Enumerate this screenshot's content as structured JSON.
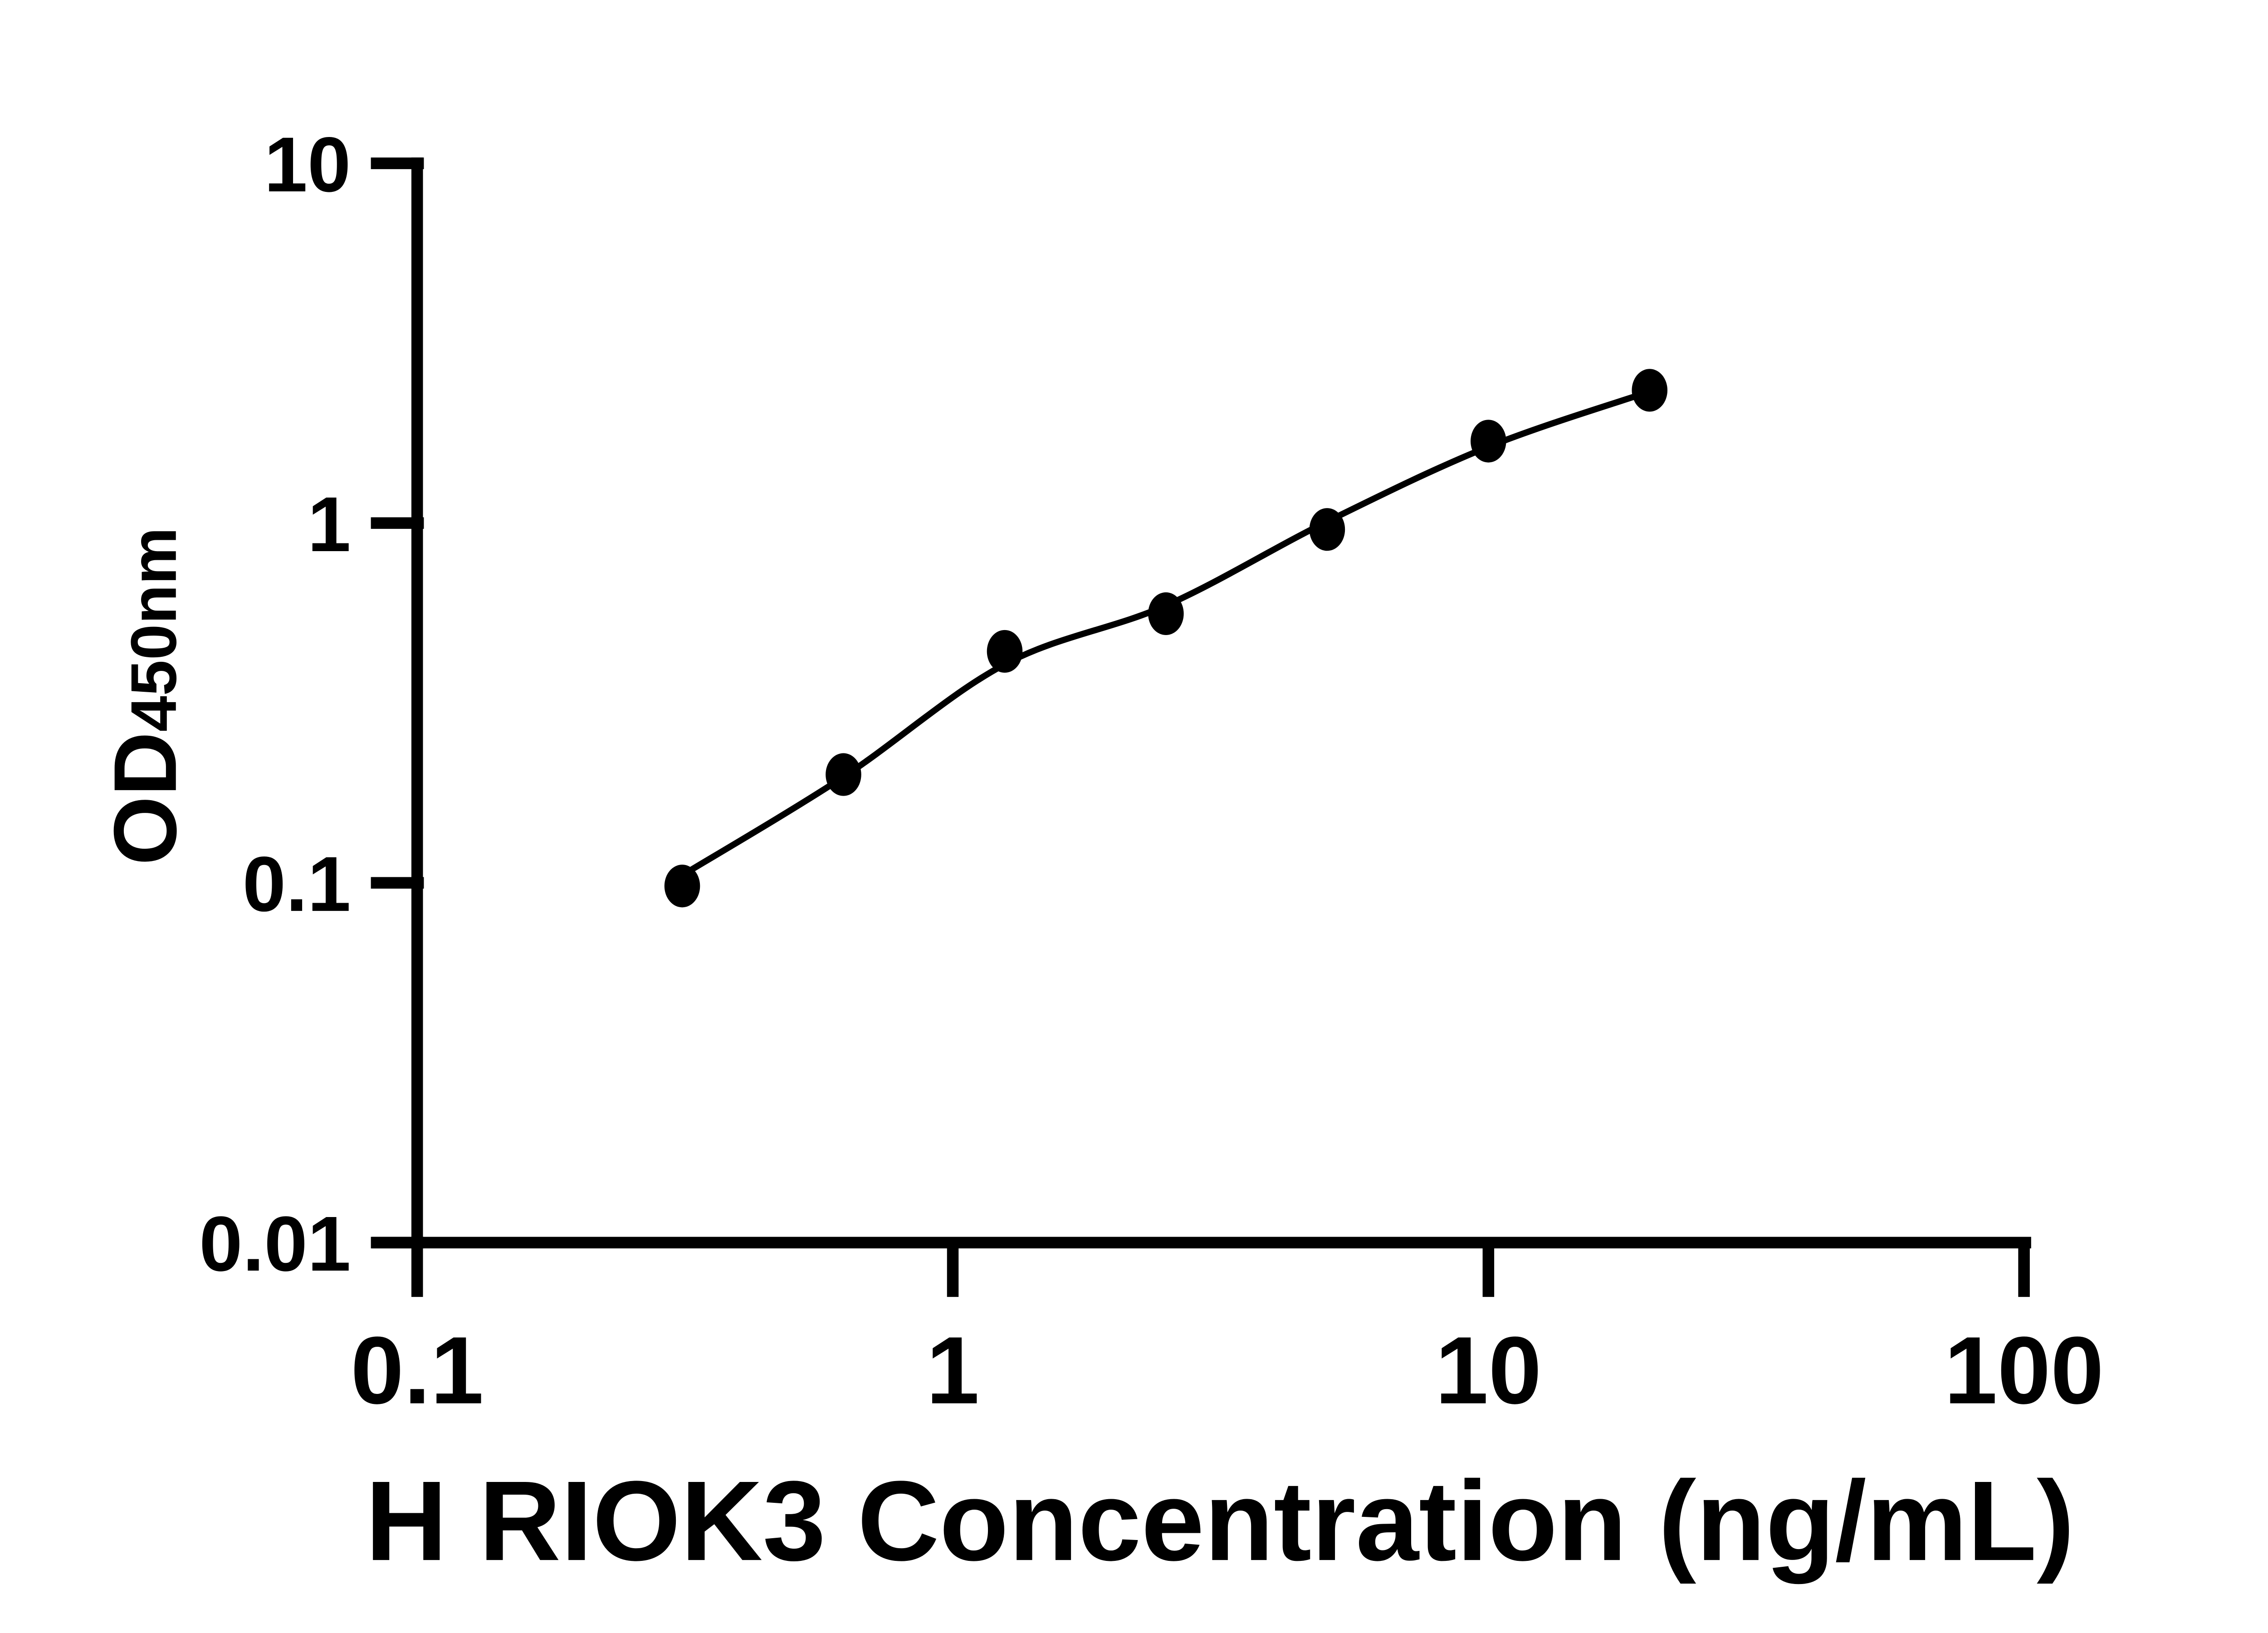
{
  "colors": {
    "foreground": "#000000",
    "background": "#ffffff"
  },
  "chart_data": {
    "type": "scatter",
    "subtype": "log-log standard curve with fitted line",
    "xlabel": "H RIOK3 Concentration (ng/mL)",
    "ylabel_main": "OD",
    "ylabel_sub": "450nm",
    "x_scale": "log10",
    "y_scale": "log10",
    "xlim": [
      0.1,
      100
    ],
    "ylim": [
      0.01,
      10
    ],
    "grid": "off",
    "legend": "none",
    "x_ticks": [
      {
        "value": 0.1,
        "label": "0.1"
      },
      {
        "value": 1,
        "label": "1"
      },
      {
        "value": 10,
        "label": "10"
      },
      {
        "value": 100,
        "label": "100"
      }
    ],
    "y_ticks": [
      {
        "value": 10,
        "label": "10"
      },
      {
        "value": 1,
        "label": "1"
      },
      {
        "value": 0.1,
        "label": "0.1"
      },
      {
        "value": 0.01,
        "label": "0.01"
      }
    ],
    "series": [
      {
        "name": "standard-curve-points",
        "marker": "filled-circle",
        "color": "#000000",
        "points": [
          {
            "x": 0.3125,
            "od": 0.098
          },
          {
            "x": 0.625,
            "od": 0.2
          },
          {
            "x": 1.25,
            "od": 0.44
          },
          {
            "x": 2.5,
            "od": 0.56
          },
          {
            "x": 5,
            "od": 0.96
          },
          {
            "x": 10,
            "od": 1.69
          },
          {
            "x": 20,
            "od": 2.34
          }
        ]
      }
    ],
    "trend_curve": {
      "name": "fitted-curve",
      "color": "#000000",
      "points": [
        {
          "x": 0.3125,
          "od": 0.105
        },
        {
          "x": 0.625,
          "od": 0.197
        },
        {
          "x": 1.25,
          "od": 0.405
        },
        {
          "x": 2.5,
          "od": 0.59
        },
        {
          "x": 5,
          "od": 1.01
        },
        {
          "x": 10,
          "od": 1.63
        },
        {
          "x": 20,
          "od": 2.32
        }
      ]
    }
  }
}
